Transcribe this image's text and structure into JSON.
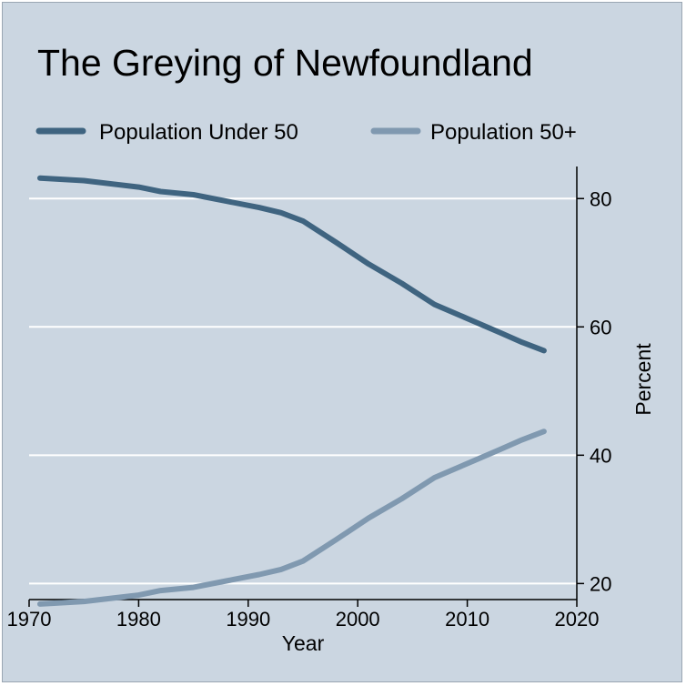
{
  "chart_data": {
    "type": "line",
    "title": "The Greying of Newfoundland",
    "xlabel": "Year",
    "ylabel": "Percent",
    "xlim": [
      1970,
      2020
    ],
    "ylim": [
      17.5,
      85
    ],
    "x_ticks": [
      1970,
      1980,
      1990,
      2000,
      2010,
      2020
    ],
    "y_ticks": [
      20,
      40,
      60,
      80
    ],
    "y_axis_side": "right",
    "grid": "horizontal",
    "legend_position": "top",
    "colors": {
      "under50": "#3f6480",
      "over50": "#8099b0",
      "background": "#cbd6e1",
      "grid": "#ffffff"
    },
    "series": [
      {
        "name": "Population Under 50",
        "color": "#3f6480",
        "x": [
          1971,
          1975,
          1980,
          1982,
          1985,
          1988,
          1991,
          1993,
          1995,
          1998,
          2001,
          2004,
          2007,
          2010,
          2013,
          2015,
          2017
        ],
        "y": [
          83.2,
          82.8,
          81.8,
          81.1,
          80.6,
          79.6,
          78.6,
          77.8,
          76.5,
          73.2,
          69.8,
          66.8,
          63.5,
          61.3,
          59.1,
          57.6,
          56.3
        ]
      },
      {
        "name": "Population 50+",
        "color": "#8099b0",
        "x": [
          1971,
          1975,
          1980,
          1982,
          1985,
          1988,
          1991,
          1993,
          1995,
          1998,
          2001,
          2004,
          2007,
          2010,
          2013,
          2015,
          2017
        ],
        "y": [
          16.8,
          17.2,
          18.2,
          18.9,
          19.4,
          20.4,
          21.4,
          22.2,
          23.5,
          26.8,
          30.2,
          33.2,
          36.5,
          38.7,
          40.9,
          42.4,
          43.7
        ]
      }
    ]
  }
}
